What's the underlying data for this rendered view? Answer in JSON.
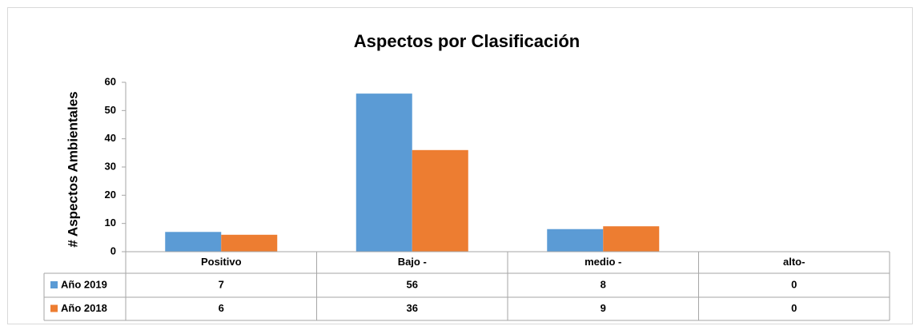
{
  "chart_data": {
    "type": "bar",
    "title": "Aspectos por Clasificación",
    "y_label": "# Aspectos Ambientales",
    "categories": [
      "Positivo",
      "Bajo -",
      "medio -",
      "alto-"
    ],
    "series": [
      {
        "name": "Año 2019",
        "color": "#5b9bd5",
        "values": [
          7,
          56,
          8,
          0
        ]
      },
      {
        "name": "Año 2018",
        "color": "#ed7d31",
        "values": [
          6,
          36,
          9,
          0
        ]
      }
    ],
    "ylim": [
      0,
      60
    ],
    "yticks": [
      0,
      10,
      20,
      30,
      40,
      50,
      60
    ],
    "grid": false,
    "data_table": true
  }
}
